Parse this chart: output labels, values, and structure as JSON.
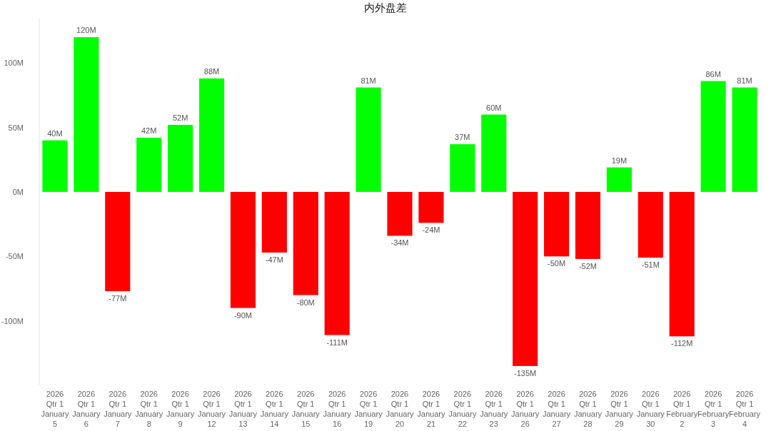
{
  "chart_data": {
    "type": "bar",
    "title": "内外盘差",
    "categories": [
      "2026 Qtr 1 January 5",
      "2026 Qtr 1 January 6",
      "2026 Qtr 1 January 7",
      "2026 Qtr 1 January 8",
      "2026 Qtr 1 January 9",
      "2026 Qtr 1 January 12",
      "2026 Qtr 1 January 13",
      "2026 Qtr 1 January 14",
      "2026 Qtr 1 January 15",
      "2026 Qtr 1 January 16",
      "2026 Qtr 1 January 19",
      "2026 Qtr 1 January 20",
      "2026 Qtr 1 January 21",
      "2026 Qtr 1 January 22",
      "2026 Qtr 1 January 23",
      "2026 Qtr 1 January 26",
      "2026 Qtr 1 January 27",
      "2026 Qtr 1 January 28",
      "2026 Qtr 1 January 29",
      "2026 Qtr 1 January 30",
      "2026 Qtr 1 February 2",
      "2026 Qtr 1 February 3",
      "2026 Qtr 1 February 4"
    ],
    "values": [
      40,
      120,
      -77,
      42,
      52,
      88,
      -90,
      -47,
      -80,
      -111,
      81,
      -34,
      -24,
      37,
      60,
      -135,
      -50,
      -52,
      19,
      -51,
      -112,
      86,
      81
    ],
    "colors": [
      "#00ff00",
      "#00ff00",
      "#ff0000",
      "#00ff00",
      "#00ff00",
      "#00ff00",
      "#ff0000",
      "#ff0000",
      "#ff0000",
      "#ff0000",
      "#00ff00",
      "#ff0000",
      "#ff0000",
      "#00ff00",
      "#00ff00",
      "#ff0000",
      "#ff0000",
      "#ff0000",
      "#00ff00",
      "#ff0000",
      "#ff0000",
      "#00ff00",
      "#00ff00"
    ],
    "value_labels": [
      "40M",
      "120M",
      "-77M",
      "42M",
      "52M",
      "88M",
      "-90M",
      "-47M",
      "-80M",
      "-111M",
      "81M",
      "-34M",
      "-24M",
      "37M",
      "60M",
      "-135M",
      "-50M",
      "-52M",
      "19M",
      "-51M",
      "-112M",
      "86M",
      "81M"
    ],
    "ylim": [
      -150,
      135
    ],
    "yticks": [
      {
        "value": -100,
        "label": "-100M"
      },
      {
        "value": -50,
        "label": "-50M"
      },
      {
        "value": 0,
        "label": "0M"
      },
      {
        "value": 50,
        "label": "50M"
      },
      {
        "value": 100,
        "label": "100M"
      }
    ],
    "grid": false
  }
}
